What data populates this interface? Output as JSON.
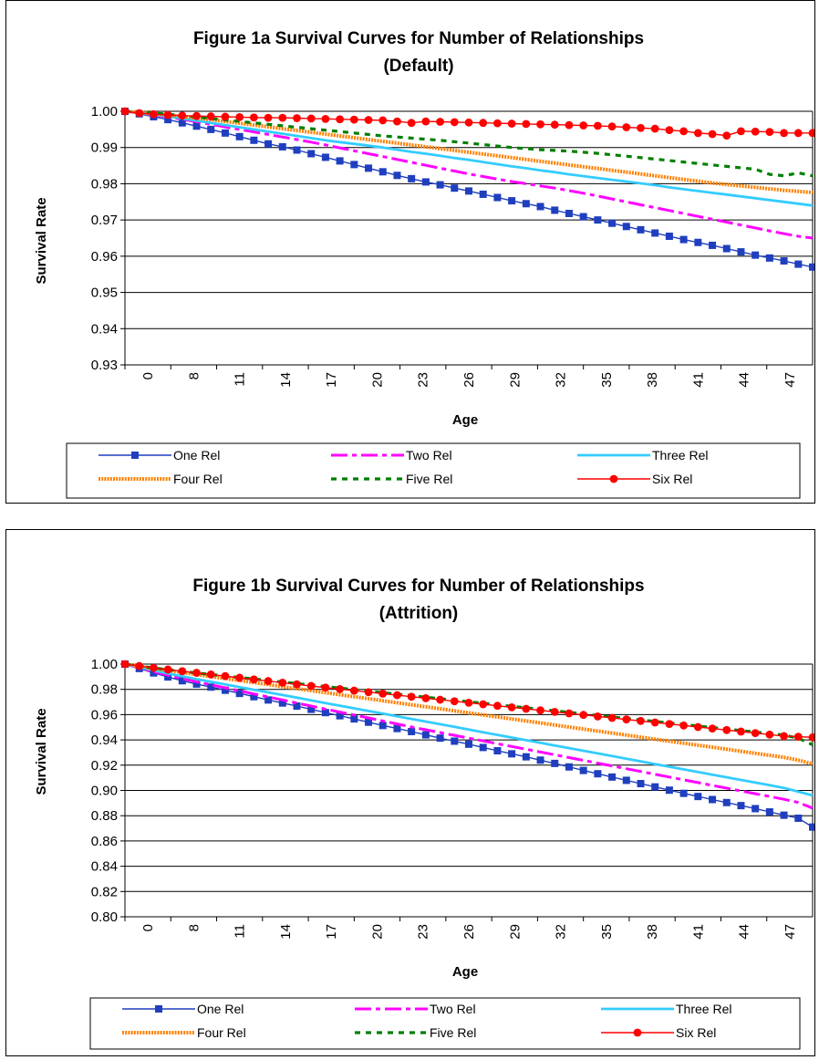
{
  "chart_data": [
    {
      "type": "line",
      "title": "Figure 1a Survival Curves for Number of Relationships",
      "subtitle": "(Default)",
      "xlabel": "Age",
      "ylabel": "Survival Rate",
      "ylim": [
        0.93,
        1.0
      ],
      "yticks": [
        "0.93",
        "0.94",
        "0.95",
        "0.96",
        "0.97",
        "0.98",
        "0.99",
        "1.00"
      ],
      "xticks": [
        "0",
        "8",
        "11",
        "14",
        "17",
        "20",
        "23",
        "26",
        "29",
        "32",
        "35",
        "38",
        "41",
        "44",
        "47"
      ],
      "grid": "horizontal",
      "legend_position": "bottom",
      "series": [
        {
          "name": "One Rel",
          "color": "#1f3fbf",
          "style": "solid-square",
          "values": [
            1.0,
            0.9993,
            0.9985,
            0.9977,
            0.9968,
            0.9959,
            0.995,
            0.994,
            0.993,
            0.992,
            0.991,
            0.9902,
            0.9893,
            0.9883,
            0.9873,
            0.9863,
            0.9853,
            0.9843,
            0.9833,
            0.9823,
            0.9814,
            0.9805,
            0.9797,
            0.9788,
            0.978,
            0.9771,
            0.9762,
            0.9753,
            0.9745,
            0.9737,
            0.9727,
            0.9718,
            0.9709,
            0.97,
            0.9691,
            0.9682,
            0.9673,
            0.9664,
            0.9655,
            0.9646,
            0.9638,
            0.963,
            0.9621,
            0.9612,
            0.9603,
            0.9595,
            0.9587,
            0.9578,
            0.957
          ]
        },
        {
          "name": "Two Rel",
          "color": "#ff00ff",
          "style": "dashdot",
          "values": [
            1.0,
            0.9995,
            0.999,
            0.9984,
            0.9978,
            0.9971,
            0.9964,
            0.9957,
            0.995,
            0.9943,
            0.9936,
            0.9929,
            0.9922,
            0.9915,
            0.9907,
            0.9899,
            0.9891,
            0.9883,
            0.9875,
            0.9867,
            0.9859,
            0.9851,
            0.9843,
            0.9835,
            0.9827,
            0.982,
            0.9813,
            0.9806,
            0.98,
            0.9794,
            0.9788,
            0.9781,
            0.9774,
            0.9766,
            0.9758,
            0.975,
            0.9742,
            0.9734,
            0.9726,
            0.9718,
            0.971,
            0.9702,
            0.9694,
            0.9686,
            0.9678,
            0.967,
            0.9662,
            0.9655,
            0.965
          ]
        },
        {
          "name": "Three Rel",
          "color": "#33ccff",
          "style": "solid",
          "values": [
            1.0,
            0.9996,
            0.9991,
            0.9986,
            0.998,
            0.9974,
            0.9968,
            0.9962,
            0.9956,
            0.995,
            0.9944,
            0.9938,
            0.9932,
            0.9926,
            0.992,
            0.9915,
            0.991,
            0.9905,
            0.99,
            0.9894,
            0.9888,
            0.9883,
            0.9877,
            0.9871,
            0.9866,
            0.986,
            0.9854,
            0.9848,
            0.9843,
            0.9837,
            0.9832,
            0.9826,
            0.9821,
            0.9816,
            0.9811,
            0.9806,
            0.9801,
            0.9796,
            0.979,
            0.9785,
            0.978,
            0.9775,
            0.977,
            0.9765,
            0.976,
            0.9755,
            0.975,
            0.9745,
            0.974
          ]
        },
        {
          "name": "Four Rel",
          "color": "#ff8000",
          "style": "hatched",
          "values": [
            1.0,
            0.9997,
            0.9994,
            0.999,
            0.9986,
            0.9981,
            0.9977,
            0.9972,
            0.9967,
            0.9962,
            0.9957,
            0.9952,
            0.9947,
            0.9942,
            0.9937,
            0.9932,
            0.9927,
            0.9922,
            0.9917,
            0.9912,
            0.9907,
            0.9902,
            0.9897,
            0.9892,
            0.9887,
            0.9882,
            0.9877,
            0.9872,
            0.9867,
            0.9862,
            0.9857,
            0.9852,
            0.9847,
            0.9842,
            0.9837,
            0.9832,
            0.9827,
            0.9822,
            0.9817,
            0.9812,
            0.9807,
            0.9802,
            0.9798,
            0.9794,
            0.979,
            0.9786,
            0.9782,
            0.9779,
            0.9776
          ]
        },
        {
          "name": "Five Rel",
          "color": "#008000",
          "style": "dotted",
          "values": [
            1.0,
            0.9998,
            0.9995,
            0.9992,
            0.9988,
            0.9984,
            0.998,
            0.9976,
            0.9972,
            0.9968,
            0.9964,
            0.996,
            0.9956,
            0.9952,
            0.9948,
            0.9944,
            0.994,
            0.9936,
            0.9932,
            0.9929,
            0.9926,
            0.9923,
            0.992,
            0.9916,
            0.9912,
            0.9908,
            0.9904,
            0.99,
            0.9897,
            0.9894,
            0.9892,
            0.989,
            0.9887,
            0.9884,
            0.988,
            0.9876,
            0.9872,
            0.9868,
            0.9864,
            0.986,
            0.9856,
            0.9852,
            0.9848,
            0.9844,
            0.984,
            0.9826,
            0.9822,
            0.983,
            0.9822
          ]
        },
        {
          "name": "Six Rel",
          "color": "#ff0000",
          "style": "solid-circle",
          "values": [
            1.0,
            0.9995,
            0.9992,
            0.999,
            0.9988,
            0.9987,
            0.9986,
            0.9985,
            0.9984,
            0.9983,
            0.9982,
            0.9982,
            0.9981,
            0.998,
            0.9979,
            0.9978,
            0.9977,
            0.9976,
            0.9975,
            0.9972,
            0.9968,
            0.9972,
            0.9971,
            0.997,
            0.9969,
            0.9968,
            0.9967,
            0.9966,
            0.9965,
            0.9964,
            0.9963,
            0.9962,
            0.9961,
            0.996,
            0.9958,
            0.9956,
            0.9954,
            0.9952,
            0.9948,
            0.9945,
            0.994,
            0.9937,
            0.9933,
            0.9945,
            0.9944,
            0.9943,
            0.994,
            0.994,
            0.994
          ]
        }
      ]
    },
    {
      "type": "line",
      "title": "Figure 1b Survival Curves for Number of Relationships",
      "subtitle": "(Attrition)",
      "xlabel": "Age",
      "ylabel": "Survival Rate",
      "ylim": [
        0.8,
        1.0
      ],
      "yticks": [
        "0.80",
        "0.82",
        "0.84",
        "0.86",
        "0.88",
        "0.90",
        "0.92",
        "0.94",
        "0.96",
        "0.98",
        "1.00"
      ],
      "xticks": [
        "0",
        "8",
        "11",
        "14",
        "17",
        "20",
        "23",
        "26",
        "29",
        "32",
        "35",
        "38",
        "41",
        "44",
        "47"
      ],
      "grid": "horizontal",
      "legend_position": "bottom",
      "series": [
        {
          "name": "One Rel",
          "color": "#1f3fbf",
          "style": "solid-square",
          "values": [
            1.0,
            0.9965,
            0.993,
            0.9898,
            0.9868,
            0.9842,
            0.9818,
            0.9793,
            0.9768,
            0.9742,
            0.9716,
            0.9692,
            0.9668,
            0.9642,
            0.9616,
            0.9591,
            0.9566,
            0.954,
            0.9514,
            0.949,
            0.9466,
            0.944,
            0.9414,
            0.939,
            0.9366,
            0.934,
            0.9314,
            0.929,
            0.9266,
            0.924,
            0.9214,
            0.9186,
            0.9158,
            0.9132,
            0.9106,
            0.908,
            0.9054,
            0.9028,
            0.9002,
            0.8977,
            0.8952,
            0.8928,
            0.8904,
            0.888,
            0.8856,
            0.883,
            0.8804,
            0.878,
            0.871
          ]
        },
        {
          "name": "Two Rel",
          "color": "#ff00ff",
          "style": "dashdot",
          "values": [
            1.0,
            0.997,
            0.994,
            0.9912,
            0.9885,
            0.986,
            0.9836,
            0.9812,
            0.9788,
            0.9764,
            0.974,
            0.9716,
            0.9692,
            0.9668,
            0.9644,
            0.962,
            0.9597,
            0.9574,
            0.955,
            0.9526,
            0.9502,
            0.948,
            0.9458,
            0.9436,
            0.9414,
            0.9392,
            0.937,
            0.9348,
            0.9326,
            0.9304,
            0.9282,
            0.926,
            0.9238,
            0.9216,
            0.9194,
            0.9172,
            0.915,
            0.9128,
            0.9106,
            0.9084,
            0.9062,
            0.904,
            0.9018,
            0.8996,
            0.8974,
            0.8952,
            0.893,
            0.8905,
            0.886
          ]
        },
        {
          "name": "Three Rel",
          "color": "#33ccff",
          "style": "solid",
          "values": [
            1.0,
            0.9975,
            0.995,
            0.9926,
            0.9903,
            0.9881,
            0.986,
            0.9839,
            0.9818,
            0.9797,
            0.9776,
            0.9755,
            0.9734,
            0.9713,
            0.9692,
            0.9671,
            0.965,
            0.9629,
            0.9608,
            0.9587,
            0.9566,
            0.9545,
            0.9524,
            0.9503,
            0.9482,
            0.9461,
            0.944,
            0.9419,
            0.9398,
            0.9377,
            0.9356,
            0.9335,
            0.9314,
            0.9293,
            0.9272,
            0.9251,
            0.923,
            0.9209,
            0.9188,
            0.9167,
            0.9146,
            0.9125,
            0.9104,
            0.9083,
            0.9062,
            0.9041,
            0.902,
            0.899,
            0.896
          ]
        },
        {
          "name": "Four Rel",
          "color": "#ff8000",
          "style": "hatched",
          "values": [
            1.0,
            0.9983,
            0.9966,
            0.995,
            0.9934,
            0.9918,
            0.9902,
            0.9886,
            0.987,
            0.9854,
            0.9838,
            0.9822,
            0.9806,
            0.979,
            0.9774,
            0.9758,
            0.9742,
            0.9726,
            0.971,
            0.9694,
            0.9678,
            0.9662,
            0.9646,
            0.963,
            0.9614,
            0.9598,
            0.9582,
            0.9566,
            0.955,
            0.9534,
            0.9518,
            0.9502,
            0.9486,
            0.947,
            0.9454,
            0.9438,
            0.9422,
            0.9406,
            0.939,
            0.9374,
            0.9358,
            0.9342,
            0.9326,
            0.931,
            0.9294,
            0.9278,
            0.9262,
            0.924,
            0.921
          ]
        },
        {
          "name": "Five Rel",
          "color": "#008000",
          "style": "dotted",
          "values": [
            1.0,
            0.9985,
            0.997,
            0.9956,
            0.9943,
            0.993,
            0.9918,
            0.9906,
            0.9894,
            0.9882,
            0.987,
            0.9858,
            0.9846,
            0.9834,
            0.9822,
            0.981,
            0.9798,
            0.9786,
            0.9774,
            0.9762,
            0.975,
            0.9738,
            0.9726,
            0.9714,
            0.9702,
            0.969,
            0.9678,
            0.9666,
            0.9654,
            0.9642,
            0.963,
            0.9618,
            0.9606,
            0.9594,
            0.9582,
            0.957,
            0.9558,
            0.9546,
            0.9534,
            0.9522,
            0.951,
            0.9498,
            0.9486,
            0.9474,
            0.9462,
            0.945,
            0.9438,
            0.9414,
            0.9362
          ]
        },
        {
          "name": "Six Rel",
          "color": "#ff0000",
          "style": "solid-circle",
          "values": [
            1.0,
            0.9985,
            0.997,
            0.9957,
            0.9944,
            0.9931,
            0.9918,
            0.9905,
            0.9892,
            0.9879,
            0.9866,
            0.9853,
            0.984,
            0.9827,
            0.9814,
            0.9802,
            0.979,
            0.9778,
            0.9766,
            0.9754,
            0.9742,
            0.973,
            0.9718,
            0.9706,
            0.9694,
            0.9682,
            0.967,
            0.9658,
            0.9646,
            0.9634,
            0.9622,
            0.961,
            0.9598,
            0.9586,
            0.9574,
            0.9562,
            0.955,
            0.9538,
            0.9526,
            0.9514,
            0.9502,
            0.949,
            0.9478,
            0.9466,
            0.9454,
            0.9442,
            0.943,
            0.9425,
            0.942
          ]
        }
      ]
    }
  ]
}
